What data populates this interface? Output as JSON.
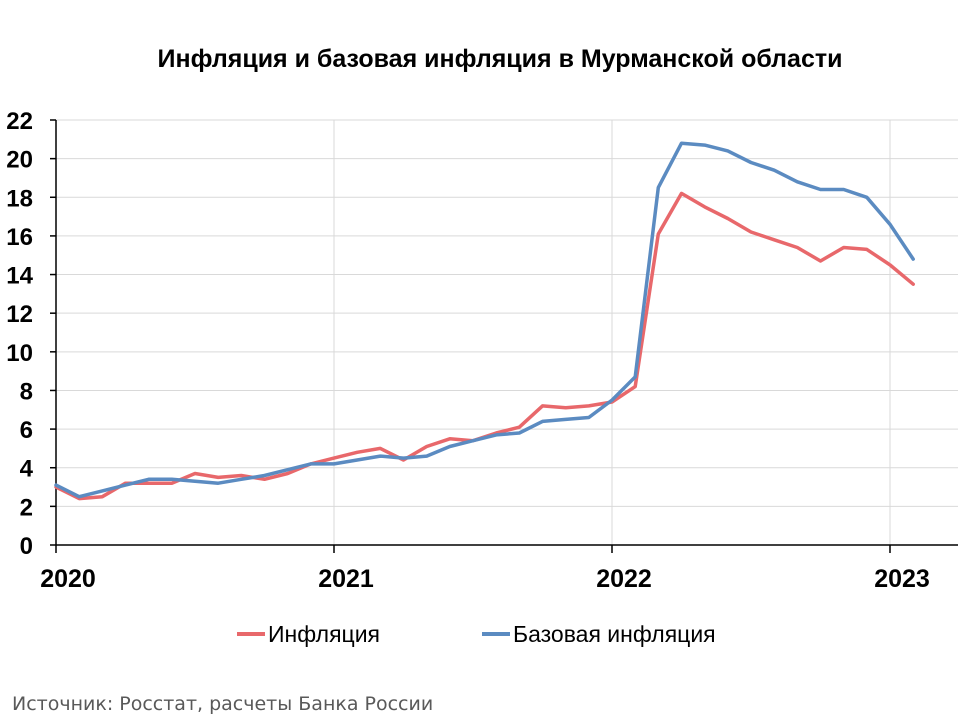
{
  "chart_data": {
    "type": "line",
    "title": "Инфляция и базовая инфляция в Мурманской области",
    "xlabel": "",
    "ylabel": "",
    "ylim": [
      0,
      22
    ],
    "y_ticks": [
      "0",
      "2",
      "4",
      "6",
      "8",
      "10",
      "12",
      "14",
      "16",
      "18",
      "20",
      "22"
    ],
    "x_ticks": [
      "2020",
      "2021",
      "2022",
      "2023"
    ],
    "grid": true,
    "legend_position": "bottom",
    "x": [
      "2020-01",
      "2020-02",
      "2020-03",
      "2020-04",
      "2020-05",
      "2020-06",
      "2020-07",
      "2020-08",
      "2020-09",
      "2020-10",
      "2020-11",
      "2020-12",
      "2021-01",
      "2021-02",
      "2021-03",
      "2021-04",
      "2021-05",
      "2021-06",
      "2021-07",
      "2021-08",
      "2021-09",
      "2021-10",
      "2021-11",
      "2021-12",
      "2022-01",
      "2022-02",
      "2022-03",
      "2022-04",
      "2022-05",
      "2022-06",
      "2022-07",
      "2022-08",
      "2022-09",
      "2022-10",
      "2022-11",
      "2022-12",
      "2023-01",
      "2023-02"
    ],
    "series": [
      {
        "name": "Инфляция",
        "color": "#E8686B",
        "values": [
          3.0,
          2.4,
          2.5,
          3.2,
          3.2,
          3.2,
          3.7,
          3.5,
          3.6,
          3.4,
          3.7,
          4.2,
          4.5,
          4.8,
          5.0,
          4.4,
          5.1,
          5.5,
          5.4,
          5.8,
          6.1,
          7.2,
          7.1,
          7.2,
          7.4,
          8.2,
          16.1,
          18.2,
          17.5,
          16.9,
          16.2,
          15.8,
          15.4,
          14.7,
          15.4,
          15.3,
          14.5,
          13.5
        ]
      },
      {
        "name": "Базовая инфляция",
        "color": "#5B8BC1",
        "values": [
          3.1,
          2.5,
          2.8,
          3.1,
          3.4,
          3.4,
          3.3,
          3.2,
          3.4,
          3.6,
          3.9,
          4.2,
          4.2,
          4.4,
          4.6,
          4.5,
          4.6,
          5.1,
          5.4,
          5.7,
          5.8,
          6.4,
          6.5,
          6.6,
          7.5,
          8.7,
          18.5,
          20.8,
          20.7,
          20.4,
          19.8,
          19.4,
          18.8,
          18.4,
          18.4,
          18.0,
          16.6,
          14.8
        ]
      }
    ]
  },
  "source": "Источник: Росстат, расчеты Банка России"
}
